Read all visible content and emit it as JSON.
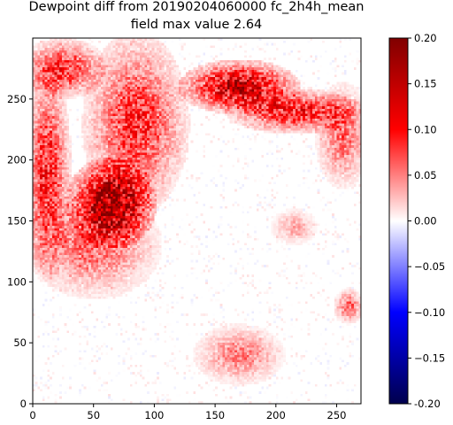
{
  "chart_data": {
    "type": "heatmap",
    "title_lines": [
      "Dewpoint diff from 20190204060000 fc_2h4h_mean",
      "field max value 2.64"
    ],
    "xlabel": "",
    "ylabel": "",
    "xlim": [
      0,
      270
    ],
    "ylim": [
      0,
      300
    ],
    "x_ticks": [
      0,
      50,
      100,
      150,
      200,
      250
    ],
    "y_ticks": [
      0,
      50,
      100,
      150,
      200,
      250
    ],
    "colorbar": {
      "colormap": "seismic",
      "vmin": -0.2,
      "vmax": 0.2,
      "ticks": [
        "-0.20",
        "−0.15",
        "−0.10",
        "−0.05",
        "0.00",
        "0.05",
        "0.10",
        "0.15",
        "0.20"
      ],
      "tick_values": [
        -0.2,
        -0.15,
        -0.1,
        -0.05,
        0,
        0.05,
        0.1,
        0.15,
        0.2
      ],
      "colors": [
        "#00004d",
        "#0000ff",
        "#ffffff",
        "#ff0000",
        "#800000"
      ]
    },
    "field_max": 2.64,
    "regions": [
      {
        "name": "core",
        "center": [
          65,
          165
        ],
        "radius": [
          30,
          30
        ],
        "value": 0.2
      },
      {
        "name": "upper-right-band",
        "center": [
          170,
          260
        ],
        "radius": [
          40,
          18
        ],
        "value": 0.17
      },
      {
        "name": "arc-extension",
        "center": [
          215,
          240
        ],
        "radius": [
          45,
          15
        ],
        "value": 0.12
      },
      {
        "name": "streak-band",
        "center": [
          85,
          230
        ],
        "radius": [
          35,
          60
        ],
        "value": 0.1
      },
      {
        "name": "left-edge",
        "center": [
          12,
          190
        ],
        "radius": [
          16,
          70
        ],
        "value": 0.11
      },
      {
        "name": "top-left",
        "center": [
          25,
          275
        ],
        "radius": [
          30,
          20
        ],
        "value": 0.1
      },
      {
        "name": "lower-left-halo",
        "center": [
          50,
          130
        ],
        "radius": [
          45,
          35
        ],
        "value": 0.07
      },
      {
        "name": "right-cluster",
        "center": [
          255,
          220
        ],
        "radius": [
          18,
          35
        ],
        "value": 0.07
      },
      {
        "name": "bottom-blob",
        "center": [
          170,
          40
        ],
        "radius": [
          30,
          20
        ],
        "value": 0.06
      },
      {
        "name": "mid-ring",
        "center": [
          260,
          80
        ],
        "radius": [
          10,
          12
        ],
        "value": 0.07
      },
      {
        "name": "center-fragment",
        "center": [
          215,
          145
        ],
        "radius": [
          15,
          12
        ],
        "value": 0.04
      }
    ]
  }
}
